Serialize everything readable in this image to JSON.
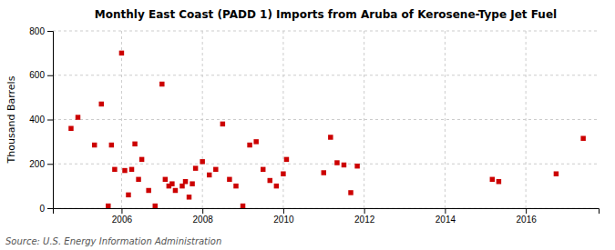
{
  "chart_data": {
    "type": "scatter",
    "title": "Monthly East Coast (PADD 1) Imports from Aruba of Kerosene-Type Jet Fuel",
    "ylabel": "Thousand Barrels",
    "source": "Source: U.S. Energy Information Administration",
    "color": "#cc0000",
    "marker": "square",
    "grid": true,
    "xlim": [
      2004.3,
      2017.8
    ],
    "ylim": [
      0,
      800
    ],
    "xticks": [
      2006,
      2008,
      2010,
      2012,
      2014,
      2016
    ],
    "yticks": [
      0,
      200,
      400,
      600,
      800
    ],
    "x": [
      2004.75,
      2004.92,
      2005.33,
      2005.5,
      2005.67,
      2005.75,
      2005.83,
      2006.0,
      2006.08,
      2006.17,
      2006.25,
      2006.33,
      2006.42,
      2006.5,
      2006.67,
      2006.83,
      2007.0,
      2007.08,
      2007.17,
      2007.25,
      2007.33,
      2007.5,
      2007.58,
      2007.67,
      2007.75,
      2007.83,
      2008.0,
      2008.17,
      2008.33,
      2008.5,
      2008.67,
      2008.83,
      2009.0,
      2009.17,
      2009.33,
      2009.5,
      2009.67,
      2009.83,
      2010.0,
      2010.08,
      2011.0,
      2011.17,
      2011.33,
      2011.5,
      2011.67,
      2011.83,
      2015.17,
      2015.33,
      2016.75,
      2017.42
    ],
    "values": [
      360,
      410,
      285,
      470,
      10,
      285,
      175,
      700,
      170,
      60,
      175,
      290,
      130,
      220,
      80,
      10,
      560,
      130,
      100,
      110,
      80,
      100,
      120,
      50,
      110,
      180,
      210,
      150,
      175,
      380,
      130,
      100,
      10,
      285,
      300,
      175,
      125,
      100,
      155,
      220,
      160,
      320,
      205,
      195,
      70,
      190,
      130,
      120,
      155,
      315
    ]
  }
}
